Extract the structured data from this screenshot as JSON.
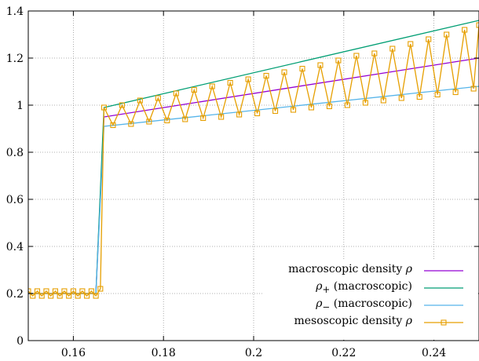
{
  "chart_data": {
    "type": "line",
    "title": "",
    "xlabel": "",
    "ylabel": "",
    "xlim": [
      0.15,
      0.25
    ],
    "ylim": [
      0,
      1.4
    ],
    "grid": true,
    "grid_style": "dotted",
    "legend_position": "bottom-right",
    "x_ticks": [
      0.16,
      0.18,
      0.2,
      0.22,
      0.24
    ],
    "x_tick_labels": [
      "0.16",
      "0.18",
      "0.2",
      "0.22",
      "0.24"
    ],
    "y_ticks": [
      0,
      0.2,
      0.4,
      0.6,
      0.8,
      1,
      1.2,
      1.4
    ],
    "y_tick_labels": [
      "0",
      "0.2",
      "0.4",
      "0.6",
      "0.8",
      "1",
      "1.2",
      "1.4"
    ],
    "series": [
      {
        "name_html": "macroscopic density <i>ρ</i>",
        "color": "#9400d3",
        "marker": "none",
        "x": [
          0.15,
          0.165,
          0.1668,
          0.25
        ],
        "y": [
          0.2,
          0.2,
          0.95,
          1.2
        ]
      },
      {
        "name_html": "<i>ρ</i><sub>+</sub> (macroscopic)",
        "color": "#009e73",
        "marker": "none",
        "x": [
          0.15,
          0.165,
          0.1668,
          0.25
        ],
        "y": [
          0.2,
          0.2,
          0.99,
          1.36
        ]
      },
      {
        "name_html": "<i>ρ</i><sub>−</sub> (macroscopic)",
        "color": "#56b4e9",
        "marker": "none",
        "x": [
          0.15,
          0.165,
          0.1668,
          0.25
        ],
        "y": [
          0.2,
          0.2,
          0.91,
          1.08
        ]
      },
      {
        "name_html": "mesoscopic density <i>ρ</i>",
        "color": "#e69f00",
        "marker": "square",
        "x": [
          0.15,
          0.151,
          0.152,
          0.153,
          0.154,
          0.155,
          0.156,
          0.157,
          0.158,
          0.159,
          0.16,
          0.161,
          0.162,
          0.163,
          0.164,
          0.165,
          0.166,
          0.1668,
          0.1688,
          0.1708,
          0.1728,
          0.1748,
          0.1768,
          0.1788,
          0.1808,
          0.1828,
          0.1848,
          0.1868,
          0.1888,
          0.1908,
          0.1928,
          0.1948,
          0.1968,
          0.1988,
          0.2008,
          0.2028,
          0.2048,
          0.2068,
          0.2088,
          0.2108,
          0.2128,
          0.2148,
          0.2168,
          0.2188,
          0.2208,
          0.2228,
          0.2248,
          0.2268,
          0.2288,
          0.2308,
          0.2328,
          0.2348,
          0.2368,
          0.2388,
          0.2408,
          0.2428,
          0.2448,
          0.2468,
          0.2488,
          0.25
        ],
        "y": [
          0.21,
          0.19,
          0.21,
          0.19,
          0.21,
          0.19,
          0.21,
          0.19,
          0.21,
          0.19,
          0.21,
          0.19,
          0.21,
          0.19,
          0.21,
          0.19,
          0.22,
          0.99,
          0.915,
          1.0,
          0.92,
          1.02,
          0.93,
          1.03,
          0.935,
          1.05,
          0.94,
          1.065,
          0.945,
          1.08,
          0.95,
          1.095,
          0.96,
          1.11,
          0.965,
          1.125,
          0.975,
          1.14,
          0.98,
          1.155,
          0.99,
          1.17,
          0.995,
          1.19,
          1.0,
          1.21,
          1.01,
          1.22,
          1.02,
          1.24,
          1.03,
          1.26,
          1.035,
          1.28,
          1.045,
          1.3,
          1.055,
          1.32,
          1.07,
          1.34
        ]
      }
    ]
  }
}
